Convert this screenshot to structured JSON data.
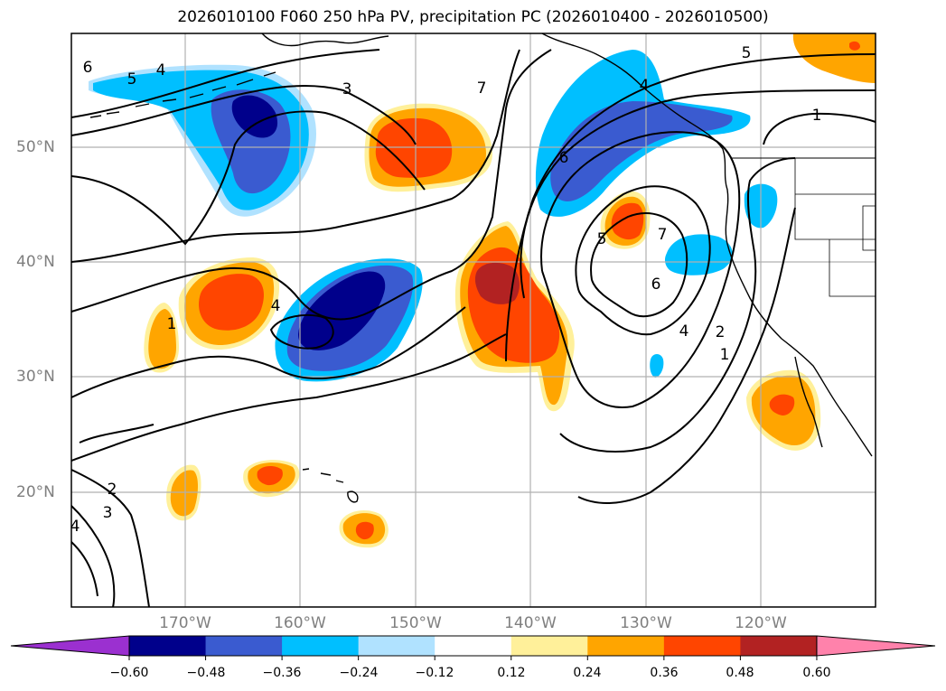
{
  "title": "2026010100 F060 250 hPa PV, precipitation PC (2026010400 - 2026010500)",
  "map": {
    "lat_labels": [
      "50°N",
      "40°N",
      "30°N",
      "20°N"
    ],
    "lon_labels": [
      "170°W",
      "160°W",
      "150°W",
      "140°W",
      "130°W",
      "120°W"
    ],
    "pv_contour_labels": [
      "6",
      "5",
      "4",
      "3",
      "7",
      "5",
      "4",
      "1",
      "6",
      "5",
      "7",
      "6",
      "4",
      "2",
      "1",
      "4",
      "1",
      "2",
      "3",
      "4"
    ]
  },
  "colorbar": {
    "ticks": [
      "−0.60",
      "−0.48",
      "−0.36",
      "−0.24",
      "−0.12",
      "0.12",
      "0.24",
      "0.36",
      "0.48",
      "0.60"
    ],
    "colors": [
      "#9b30d0",
      "#00008b",
      "#3a5bd0",
      "#00bfff",
      "#b0e2ff",
      "#ffffff",
      "#fff09a",
      "#ffa500",
      "#ff4500",
      "#b22222",
      "#ff82ab"
    ]
  }
}
